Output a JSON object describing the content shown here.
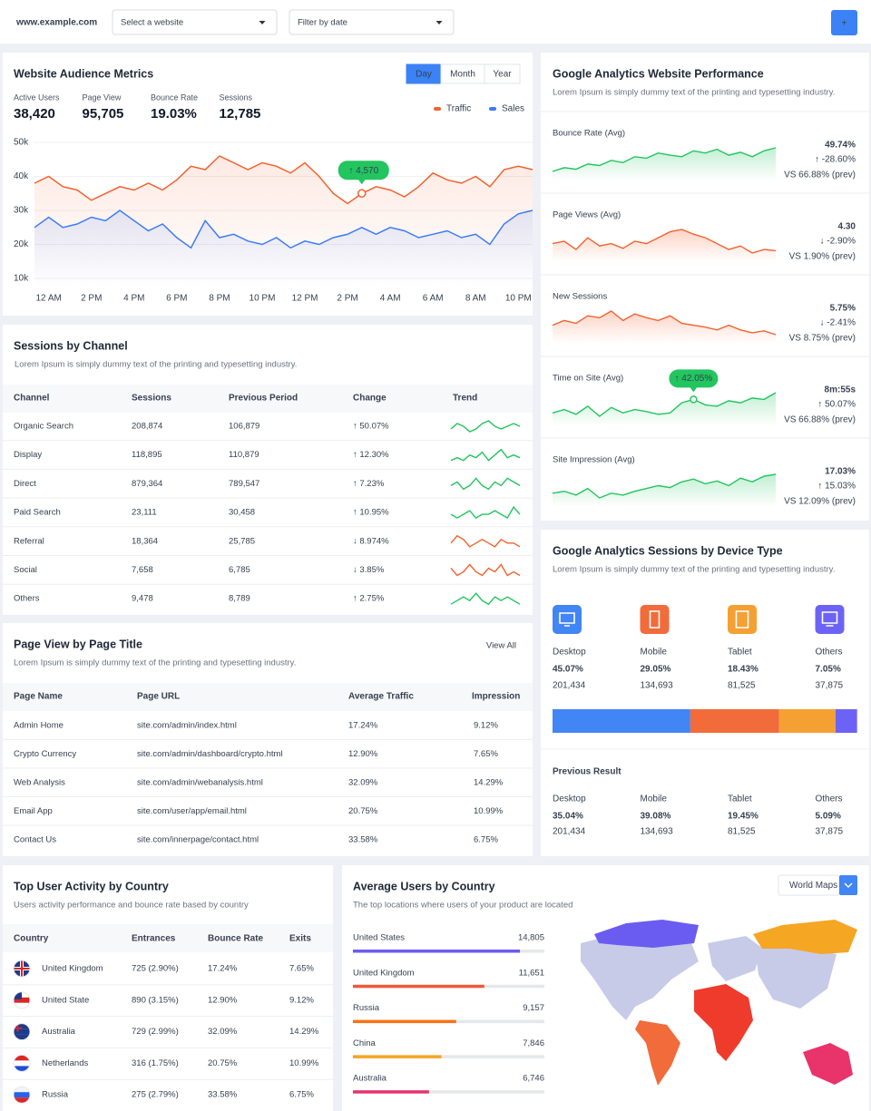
{
  "topbar": {
    "site": "www.example.com",
    "website_select": "Select a website",
    "date_filter": "Filter by date",
    "add_button": "+"
  },
  "audience": {
    "title": "Website Audience Metrics",
    "ranges": [
      "Day",
      "Month",
      "Year"
    ],
    "metrics": [
      {
        "label": "Active Users",
        "value": "38,420"
      },
      {
        "label": "Page View",
        "value": "95,705"
      },
      {
        "label": "Bounce Rate",
        "value": "19.03%"
      },
      {
        "label": "Sessions",
        "value": "12,785"
      }
    ]
  },
  "chart_data": {
    "type": "line",
    "categories": [
      null,
      "12 AM",
      null,
      null,
      "2 PM",
      null,
      null,
      "4 PM",
      null,
      null,
      "6 PM",
      null,
      null,
      "8 PM",
      null,
      null,
      "10 PM",
      null,
      null,
      "12 PM",
      null,
      null,
      "2 PM",
      null,
      null,
      "4 AM",
      null,
      null,
      "6 AM",
      null,
      null,
      "8 AM",
      null,
      null,
      "10 PM",
      null
    ],
    "series": [
      {
        "name": "Traffic",
        "color": "#f2622e",
        "values": [
          38,
          40,
          37,
          36,
          33,
          35,
          37,
          36,
          38,
          36,
          39,
          43,
          42,
          46,
          44,
          42,
          44,
          43,
          41,
          44,
          40,
          35,
          32,
          35,
          37,
          36,
          34,
          37,
          41,
          39,
          38,
          40,
          37,
          42,
          43,
          42
        ]
      },
      {
        "name": "Sales",
        "color": "#3b7cf4",
        "values": [
          25,
          28,
          25,
          26,
          28,
          27,
          30,
          27,
          24,
          26,
          22,
          19,
          27,
          22,
          23,
          21,
          20,
          22,
          19,
          21,
          20,
          22,
          23,
          25,
          23,
          25,
          24,
          22,
          23,
          24,
          22,
          23,
          20,
          26,
          29,
          30
        ]
      }
    ],
    "ylim": [
      10,
      50
    ],
    "yticks": [
      {
        "value": 10,
        "label": "10k"
      },
      {
        "value": 20,
        "label": "20k"
      },
      {
        "value": 30,
        "label": "30k"
      },
      {
        "value": 40,
        "label": "40k"
      },
      {
        "value": 50,
        "label": "50k"
      }
    ],
    "grid": true,
    "legend": "top-right",
    "annotations": [
      {
        "text": "↑ 4,570"
      }
    ]
  },
  "performance": {
    "title": "Google Analytics Website Performance",
    "subtitle": "Lorem Ipsum is simply dummy text of the printing and typesetting industry.",
    "rows": [
      {
        "label": "Bounce Rate (Avg)",
        "value": "49.74%",
        "change": "↑ -28.60%",
        "prev": "VS 66.88% (prev)",
        "color": "#22c55e",
        "values": [
          30,
          35,
          33,
          40,
          38,
          45,
          42,
          50,
          48,
          55,
          52,
          50,
          58,
          55,
          60,
          52,
          56,
          50,
          58,
          62
        ]
      },
      {
        "label": "Page Views (Avg)",
        "value": "4.30",
        "change": "↓ -2.90%",
        "prev": "VS 1.90% (prev)",
        "color": "#f2622e",
        "values": [
          50,
          52,
          45,
          55,
          48,
          50,
          46,
          52,
          50,
          55,
          60,
          62,
          58,
          55,
          50,
          45,
          48,
          42,
          45,
          44
        ]
      },
      {
        "label": "New Sessions",
        "value": "5.75%",
        "change": "↓ -2.41%",
        "prev": "VS 8.75% (prev)",
        "color": "#f2622e",
        "values": [
          50,
          55,
          52,
          60,
          58,
          65,
          55,
          62,
          58,
          55,
          60,
          52,
          50,
          48,
          45,
          50,
          45,
          42,
          44,
          40
        ]
      },
      {
        "label": "Time on Site (Avg)",
        "value": "8m:55s",
        "change": "↑ 50.07%",
        "prev": "VS 66.88% (prev)",
        "color": "#22c55e",
        "annotation": "↑ 42.05%",
        "values": [
          40,
          45,
          38,
          50,
          35,
          48,
          40,
          45,
          42,
          38,
          40,
          55,
          60,
          52,
          50,
          58,
          55,
          62,
          60,
          70
        ]
      },
      {
        "label": "Site Impression (Avg)",
        "value": "17.03%",
        "change": "↑ 15.03%",
        "prev": "VS 12.09% (prev)",
        "color": "#22c55e",
        "values": [
          40,
          42,
          38,
          45,
          35,
          40,
          38,
          42,
          45,
          48,
          46,
          52,
          55,
          50,
          53,
          48,
          56,
          52,
          58,
          60
        ]
      }
    ]
  },
  "sessions": {
    "title": "Sessions by Channel",
    "subtitle": "Lorem Ipsum is simply dummy text of the printing and typesetting industry.",
    "headers": [
      "Channel",
      "Sessions",
      "Previous Period",
      "Change",
      "Trend"
    ],
    "rows": [
      {
        "channel": "Organic Search",
        "sessions": "208,874",
        "previous": "106,879",
        "change": "↑ 50.07%",
        "color": "#22c55e",
        "trend": [
          5,
          7,
          6,
          4,
          5,
          7,
          8,
          6,
          5,
          6,
          7,
          6
        ]
      },
      {
        "channel": "Display",
        "sessions": "118,895",
        "previous": "110,879",
        "change": "↑ 12.30%",
        "color": "#22c55e",
        "trend": [
          4,
          5,
          4,
          6,
          5,
          7,
          4,
          6,
          8,
          5,
          6,
          5
        ]
      },
      {
        "channel": "Direct",
        "sessions": "879,364",
        "previous": "789,547",
        "change": "↑ 7.23%",
        "color": "#22c55e",
        "trend": [
          5,
          6,
          4,
          5,
          7,
          5,
          4,
          6,
          5,
          7,
          6,
          5
        ]
      },
      {
        "channel": "Paid Search",
        "sessions": "23,111",
        "previous": "30,458",
        "change": "↑ 10.95%",
        "color": "#22c55e",
        "trend": [
          5,
          4,
          5,
          6,
          4,
          5,
          5,
          6,
          5,
          4,
          7,
          5
        ]
      },
      {
        "channel": "Referral",
        "sessions": "18,364",
        "previous": "25,785",
        "change": "↓ 8.974%",
        "color": "#f2622e",
        "trend": [
          5,
          7,
          6,
          4,
          5,
          6,
          5,
          4,
          6,
          5,
          5,
          4
        ]
      },
      {
        "channel": "Social",
        "sessions": "7,658",
        "previous": "6,785",
        "change": "↓ 3.85%",
        "color": "#f2622e",
        "trend": [
          6,
          4,
          5,
          7,
          5,
          4,
          6,
          5,
          7,
          4,
          5,
          4
        ]
      },
      {
        "channel": "Others",
        "sessions": "9,478",
        "previous": "8,789",
        "change": "↑ 2.75%",
        "color": "#22c55e",
        "trend": [
          4,
          5,
          6,
          5,
          7,
          5,
          4,
          6,
          5,
          6,
          5,
          4
        ]
      }
    ]
  },
  "page_views": {
    "title": "Page View by Page Title",
    "view_all": "View All",
    "subtitle": "Lorem Ipsum is simply dummy text of the printing and typesetting industry.",
    "headers": [
      "Page Name",
      "Page URL",
      "Average Traffic",
      "Impression"
    ],
    "rows": [
      [
        "Admin Home",
        "site.com/admin/index.html",
        "17.24%",
        "9.12%"
      ],
      [
        "Crypto Currency",
        "site.com/admin/dashboard/crypto.html",
        "12.90%",
        "7.65%"
      ],
      [
        "Web Analysis",
        "site.com/admin/webanalysis.html",
        "32.09%",
        "14.29%"
      ],
      [
        "Email App",
        "site.com/user/app/email.html",
        "20.75%",
        "10.99%"
      ],
      [
        "Contact Us",
        "site.com/innerpage/contact.html",
        "33.58%",
        "6.75%"
      ]
    ],
    "impression_colors": [
      "#22c55e",
      "#f2622e",
      "#22c55e",
      "#22c55e",
      "#f2622e"
    ]
  },
  "devices": {
    "title": "Google Analytics Sessions by Device Type",
    "subtitle": "Lorem Ipsum is simply dummy text of the printing and typesetting industry.",
    "names": [
      "Desktop",
      "Mobile",
      "Tablet",
      "Others"
    ],
    "colors": [
      "#4285f4",
      "#f26b3a",
      "#f5a033",
      "#6c63f6"
    ],
    "values": [
      45.07,
      29.05,
      18.43,
      7.05
    ],
    "value_labels": [
      "45.07%",
      "29.05%",
      "18.43%",
      "7.05%"
    ],
    "counts": [
      "201,434",
      "134,693",
      "81,525",
      "37,875"
    ],
    "previous": {
      "title": "Previous Result",
      "names": [
        "Desktop",
        "Mobile",
        "Tablet",
        "Others"
      ],
      "values": [
        "35.04%",
        "39.08%",
        "19.45%",
        "5.09%"
      ],
      "counts": [
        "201,434",
        "134,693",
        "81,525",
        "37,875"
      ]
    }
  },
  "country_activity": {
    "title": "Top User Activity by Country",
    "subtitle": "Users activity performance and bounce rate based by country",
    "headers": [
      "Country",
      "Entrances",
      "Bounce Rate",
      "Exits"
    ],
    "rows": [
      [
        "United Kingdom",
        "725 (2.90%)",
        "17.24%",
        "7.65%"
      ],
      [
        "United State",
        "890 (3.15%)",
        "12.90%",
        "9.12%"
      ],
      [
        "Australia",
        "729 (2.99%)",
        "32.09%",
        "14.29%"
      ],
      [
        "Netherlands",
        "316 (1.75%)",
        "20.75%",
        "10.99%"
      ],
      [
        "Russia",
        "275 (2.79%)",
        "33.58%",
        "6.75%"
      ]
    ]
  },
  "average_users": {
    "title": "Average Users by Country",
    "subtitle": "The top locations where users of your product are located",
    "button": "World Maps",
    "countries": [
      "United States",
      "United Kingdom",
      "Russia",
      "China",
      "Australia"
    ],
    "values": [
      14805,
      11651,
      9157,
      7846,
      6746
    ],
    "value_labels": [
      "14,805",
      "11,651",
      "9,157",
      "7,846",
      "6,746"
    ],
    "colors": [
      "#6a5cf0",
      "#ef5a3a",
      "#f97316",
      "#f5a623",
      "#e8336b"
    ]
  }
}
